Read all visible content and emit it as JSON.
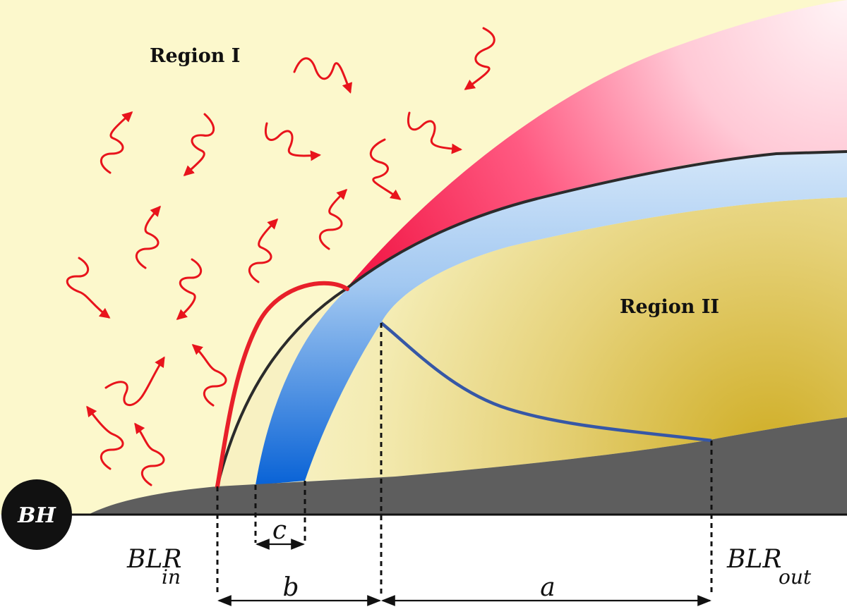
{
  "labels": {
    "region1": "Region I",
    "region2": "Region II",
    "bh": "BH",
    "blr_in_main": "BLR",
    "blr_in_sub": "in",
    "blr_out_main": "BLR",
    "blr_out_sub": "out",
    "dim_a": "a",
    "dim_b": "b",
    "dim_c": "c"
  },
  "colors": {
    "background": "#fcf8cc",
    "disk": "#5e5e5e",
    "pink_outer": "#ffe8ee",
    "pink_inner": "#ff2f63",
    "blue_top": "#cfe4f9",
    "blue_bottom": "#0a64d8",
    "gold_light": "#f6efb8",
    "gold_dark": "#d2b22a",
    "photon": "#e8141c",
    "red_curve": "#e8202a",
    "blue_curve": "#3657a6"
  }
}
